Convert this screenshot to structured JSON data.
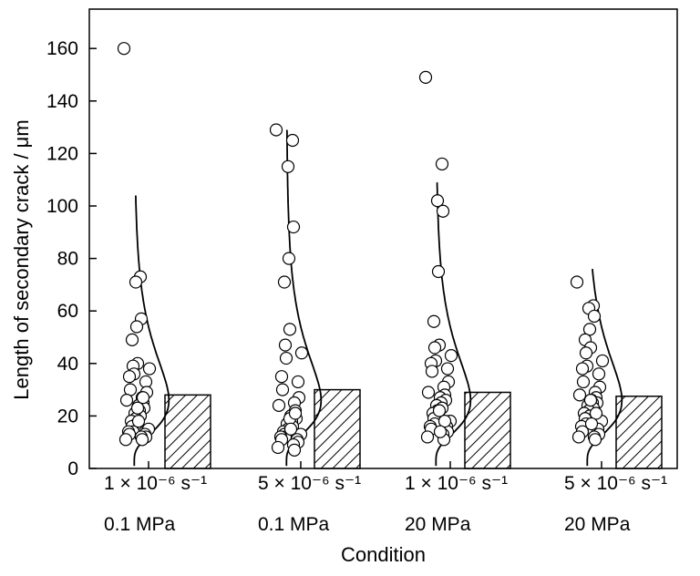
{
  "chart_data": {
    "type": "scatter",
    "xlabel": "Condition",
    "ylabel": "Length of secondary crack / μm",
    "ylim": [
      0,
      175
    ],
    "yticks": [
      0,
      20,
      40,
      60,
      80,
      100,
      120,
      140,
      160
    ],
    "categories": [
      {
        "line1": "1 × 10⁻⁶ s⁻¹",
        "line2": "0.1 MPa"
      },
      {
        "line1": "5 × 10⁻⁶ s⁻¹",
        "line2": "0.1 MPa"
      },
      {
        "line1": "1 × 10⁻⁶ s⁻¹",
        "line2": "20 MPa"
      },
      {
        "line1": "5 × 10⁻⁶ s⁻¹",
        "line2": "20 MPa"
      }
    ],
    "bar_values": [
      28,
      30,
      29,
      27.5
    ],
    "distribution_curve_max": [
      104,
      129,
      109,
      76
    ],
    "points": [
      [
        160,
        73,
        71,
        57,
        54,
        49,
        40,
        39,
        38,
        36,
        35,
        33,
        30,
        29,
        27,
        26,
        25,
        24,
        23,
        22,
        21,
        20,
        19,
        18,
        17,
        16,
        15,
        14,
        14,
        13,
        13,
        12,
        12,
        11,
        11,
        23,
        27,
        18
      ],
      [
        129,
        125,
        115,
        92,
        80,
        71,
        53,
        47,
        44,
        42,
        35,
        33,
        30,
        27,
        25,
        24,
        22,
        20,
        19,
        18,
        17,
        16,
        15,
        14,
        14,
        13,
        13,
        12,
        12,
        11,
        11,
        10,
        9,
        8,
        7,
        19,
        21,
        15
      ],
      [
        149,
        116,
        102,
        98,
        75,
        56,
        47,
        46,
        43,
        41,
        40,
        38,
        37,
        33,
        31,
        29,
        28,
        27,
        26,
        25,
        24,
        23,
        22,
        21,
        20,
        19,
        18,
        17,
        16,
        16,
        15,
        14,
        13,
        12,
        11,
        22,
        18,
        14
      ],
      [
        71,
        62,
        61,
        58,
        53,
        49,
        46,
        44,
        41,
        39,
        38,
        36,
        33,
        31,
        29,
        28,
        27,
        26,
        25,
        25,
        24,
        23,
        22,
        21,
        20,
        19,
        18,
        17,
        16,
        15,
        14,
        13,
        12,
        12,
        11,
        26,
        21,
        17
      ]
    ]
  }
}
